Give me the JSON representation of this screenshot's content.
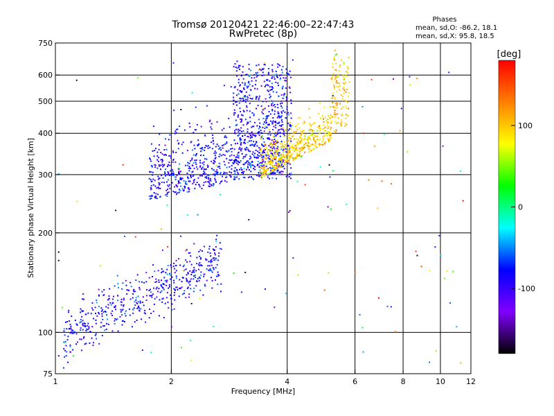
{
  "chart_data": {
    "type": "scatter",
    "title": "Tromsø 20120421 22:46:00–22:47:43",
    "subtitle": "RwPretec (8p)",
    "xlabel": "Frequency [MHz]",
    "ylabel": "Stationary phase Virtual Height [km]",
    "x_scale": "log",
    "y_scale": "log",
    "xlim": [
      1,
      12
    ],
    "ylim": [
      75,
      750
    ],
    "x_ticks": [
      1,
      2,
      4,
      6,
      8,
      10,
      12
    ],
    "y_ticks": [
      75,
      100,
      200,
      300,
      400,
      500,
      600,
      750
    ],
    "grid_x": [
      2,
      4,
      6,
      8,
      10
    ],
    "grid_y": [
      100,
      200,
      300,
      400,
      500,
      600
    ],
    "phases_box": {
      "title": "Phases",
      "line_o": "mean, sd,O: -86.2, 18.1",
      "line_x": "mean, sd,X:  95.8, 18.5"
    },
    "colorbar": {
      "label": "[deg]",
      "range": [
        -180,
        180
      ],
      "ticks": [
        100,
        0,
        -100
      ],
      "colors": [
        "#ff0000",
        "#ff8000",
        "#ffff00",
        "#00ff00",
        "#00ffff",
        "#0000ff",
        "#8000ff",
        "#000000"
      ]
    },
    "traces": [
      {
        "name": "",
        "phase_mean": -86.2,
        "x_range": [
          1.05,
          2.7
        ],
        "h_range": [
          88,
          190
        ],
        "n": 520
      },
      {
        "name": "",
        "phase_mean": -86.2,
        "x_range": [
          1.75,
          3.9
        ],
        "h_range": [
          245,
          500
        ],
        "n": 700
      },
      {
        "name": "",
        "phase_mean": -86.2,
        "x_range": [
          2.9,
          4.1
        ],
        "h_range": [
          280,
          650
        ],
        "n": 560
      },
      {
        "name": "",
        "phase_mean": 95.8,
        "x_range": [
          3.3,
          5.8
        ],
        "h_range": [
          290,
          650
        ],
        "n": 620
      }
    ]
  }
}
